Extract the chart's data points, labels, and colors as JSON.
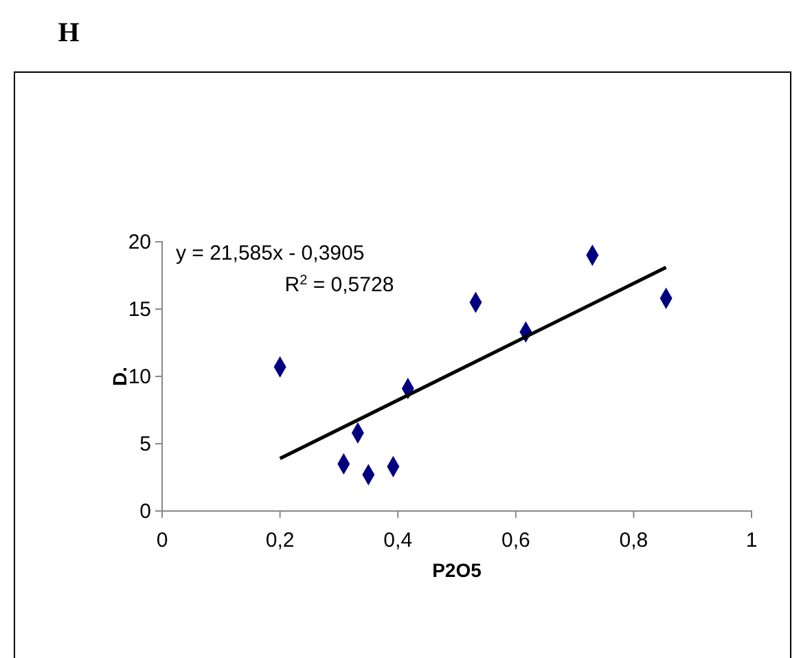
{
  "chart_data": {
    "type": "scatter",
    "title": "H",
    "xlabel": "P2O5",
    "ylabel": "D.",
    "annotations": [
      "y = 21,585x - 0,3905",
      "R$^{2}$ = 0,5728"
    ],
    "xlim": [
      0,
      1
    ],
    "xticks": [
      0,
      {
        "value": 0.2,
        "label": "0,2"
      },
      {
        "value": 0.4,
        "label": "0,4"
      },
      {
        "value": 0.6,
        "label": "0,6"
      },
      {
        "value": 0.8,
        "label": "0,8"
      },
      1
    ],
    "ylim": [
      0,
      20
    ],
    "yticks": [
      0,
      5,
      10,
      15,
      20
    ],
    "grid": false,
    "series": [
      {
        "color": "#000080",
        "marker": "diamond",
        "x": [
          0.2,
          0.308,
          0.332,
          0.35,
          0.392,
          0.417,
          0.532,
          0.617,
          0.73,
          0.855
        ],
        "values": [
          10.7,
          3.5,
          5.8,
          2.7,
          3.3,
          9.1,
          15.5,
          13.3,
          19.0,
          15.8
        ]
      },
      {
        "type": "line",
        "color": "#000000",
        "line_style": "solid",
        "x": [
          0.2,
          0.855
        ],
        "values": [
          3.9,
          18.1
        ]
      }
    ]
  }
}
